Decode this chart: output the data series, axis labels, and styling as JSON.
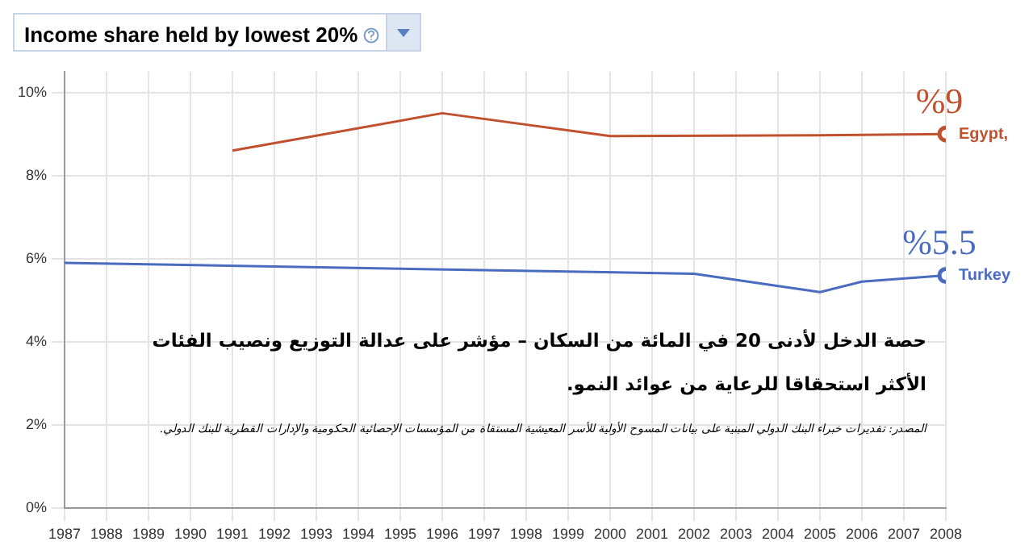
{
  "chart_data": {
    "type": "line",
    "title": "Income share held by lowest 20%",
    "series": [
      {
        "name": "Egypt,",
        "color": "#c0502e",
        "x": [
          1991,
          1996,
          2000,
          2005,
          2008
        ],
        "values": [
          8.6,
          9.5,
          8.95,
          8.97,
          9.0
        ]
      },
      {
        "name": "Turkey",
        "color": "#4a6cc0",
        "x": [
          1987,
          2002,
          2005,
          2006,
          2008
        ],
        "values": [
          5.9,
          5.64,
          5.2,
          5.45,
          5.6
        ]
      }
    ],
    "xlim": [
      1987,
      2008
    ],
    "xticks": [
      1987,
      1988,
      1989,
      1990,
      1991,
      1992,
      1993,
      1994,
      1995,
      1996,
      1997,
      1998,
      1999,
      2000,
      2001,
      2002,
      2003,
      2004,
      2005,
      2006,
      2007,
      2008
    ],
    "ylim": [
      0,
      10.5
    ],
    "yticks": [
      {
        "value": 0,
        "label": "0%"
      },
      {
        "value": 2,
        "label": "2%"
      },
      {
        "value": 4,
        "label": "4%"
      },
      {
        "value": 6,
        "label": "6%"
      },
      {
        "value": 8,
        "label": "8%"
      },
      {
        "value": 10,
        "label": "10%"
      }
    ],
    "grid": true,
    "legend": false,
    "annotations": [
      {
        "text": "%9",
        "x": 2008,
        "y": 9.0
      },
      {
        "text": "%5.5",
        "x": 2008,
        "y": 5.6
      },
      "حصة الدخل لأدنى 20 في المائة من السكان – مؤشر على عدالة التوزيع ونصيب الفئات",
      "الأكثر استحقاقا للرعاية من عوائد النمو.",
      "المصدر: تقديرات خبراء البنك الدولي المبنية على بيانات المسوح الأولية للأسر المعيشية المستقاة من المؤسسات الإحصائية الحكومية والإدارات القطرية للبنك الدولي."
    ]
  }
}
